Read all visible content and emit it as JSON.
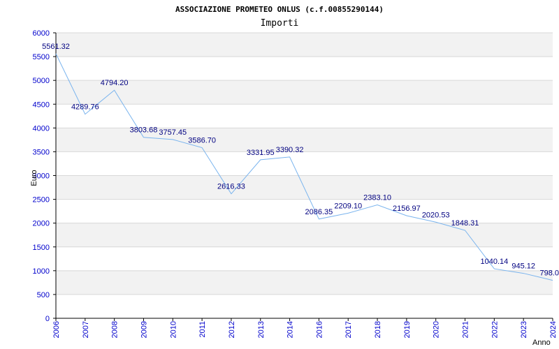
{
  "chart_data": {
    "type": "line",
    "title": "ASSOCIAZIONE PROMETEO ONLUS (c.f.00855290144)",
    "subtitle": "Importi",
    "xlabel": "Anno",
    "ylabel": "Euro",
    "ylim": [
      0,
      6000
    ],
    "y_ticks": [
      "0",
      "500",
      "1000",
      "1500",
      "2000",
      "2500",
      "3000",
      "3500",
      "4000",
      "4500",
      "5000",
      "5500",
      "6000"
    ],
    "categories": [
      "2006",
      "2007",
      "2008",
      "2009",
      "2010",
      "2011",
      "2012",
      "2013",
      "2014",
      "2016",
      "2017",
      "2018",
      "2019",
      "2020",
      "2021",
      "2022",
      "2023",
      "2024"
    ],
    "values": [
      5561.32,
      4289.76,
      4794.2,
      3803.68,
      3757.45,
      3586.7,
      2616.33,
      3331.95,
      3390.32,
      2086.35,
      2209.1,
      2383.1,
      2156.97,
      2020.53,
      1848.31,
      1040.14,
      945.12,
      798.0
    ],
    "value_labels": [
      "5561.32",
      "4289.76",
      "4794.20",
      "3803.68",
      "3757.45",
      "3586.70",
      "2616.33",
      "3331.95",
      "3390.32",
      "2086.35",
      "2209.10",
      "2383.10",
      "2156.97",
      "2020.53",
      "1848.31",
      "1040.14",
      "945.12",
      "798.0"
    ],
    "grid": true,
    "colors": {
      "line": "#7ab4ee",
      "band": "#f2f2f2",
      "grid": "#d8d8d8",
      "axis": "#000000",
      "tick_text": "#0000cc",
      "label_text": "#000080"
    }
  }
}
